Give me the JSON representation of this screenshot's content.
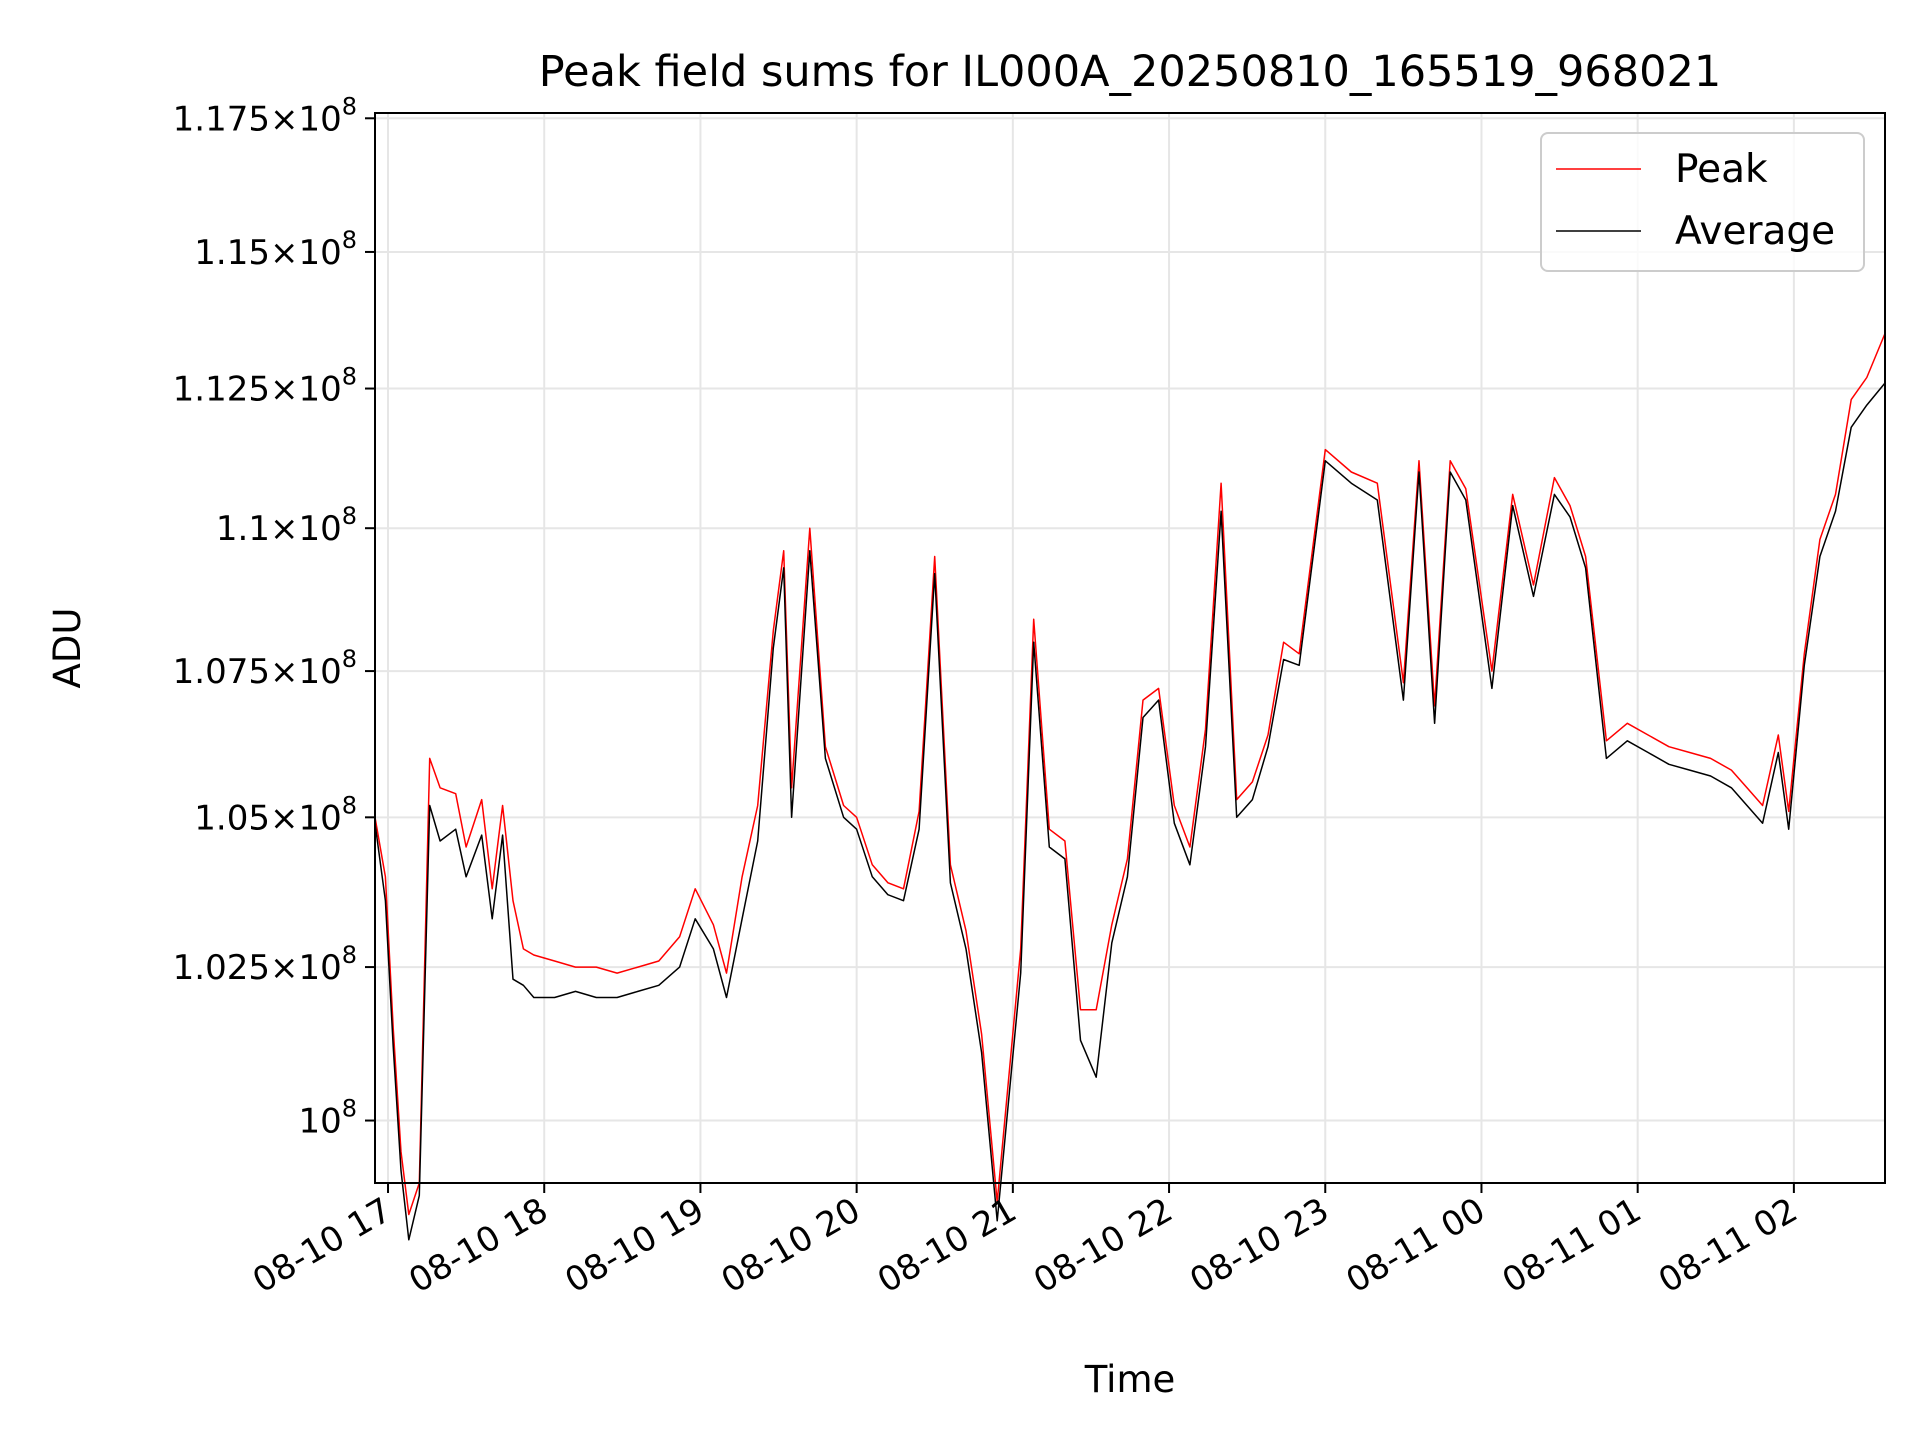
{
  "chart_data": {
    "type": "line",
    "title": "Peak field sums for IL000A_20250810_165519_968021",
    "xlabel": "Time",
    "ylabel": "ADU",
    "xlim": [
      "2025-08-10 16:55",
      "2025-08-11 02:35"
    ],
    "ylim": [
      99000000,
      117600000
    ],
    "y_scale": "log",
    "grid": true,
    "legend_position": "top-right",
    "x_ticks": [
      {
        "value": "2025-08-10 17:00",
        "label": "08-10 17"
      },
      {
        "value": "2025-08-10 18:00",
        "label": "08-10 18"
      },
      {
        "value": "2025-08-10 19:00",
        "label": "08-10 19"
      },
      {
        "value": "2025-08-10 20:00",
        "label": "08-10 20"
      },
      {
        "value": "2025-08-10 21:00",
        "label": "08-10 21"
      },
      {
        "value": "2025-08-10 22:00",
        "label": "08-10 22"
      },
      {
        "value": "2025-08-10 23:00",
        "label": "08-10 23"
      },
      {
        "value": "2025-08-11 00:00",
        "label": "08-11 00"
      },
      {
        "value": "2025-08-11 01:00",
        "label": "08-11 01"
      },
      {
        "value": "2025-08-11 02:00",
        "label": "08-11 02"
      }
    ],
    "y_ticks": [
      {
        "value": 100000000,
        "mantissa": "",
        "exponent": "8"
      },
      {
        "value": 102500000,
        "mantissa": "1.025",
        "exponent": "8"
      },
      {
        "value": 105000000,
        "mantissa": "1.05",
        "exponent": "8"
      },
      {
        "value": 107500000,
        "mantissa": "1.075",
        "exponent": "8"
      },
      {
        "value": 110000000,
        "mantissa": "1.1",
        "exponent": "8"
      },
      {
        "value": 112500000,
        "mantissa": "1.125",
        "exponent": "8"
      },
      {
        "value": 115000000,
        "mantissa": "1.15",
        "exponent": "8"
      },
      {
        "value": 117500000,
        "mantissa": "1.175",
        "exponent": "8"
      }
    ],
    "series": [
      {
        "name": "Peak",
        "color": "#ff0000",
        "x": [
          "2025-08-10 16:55",
          "2025-08-10 16:59",
          "2025-08-10 17:02",
          "2025-08-10 17:05",
          "2025-08-10 17:08",
          "2025-08-10 17:12",
          "2025-08-10 17:16",
          "2025-08-10 17:20",
          "2025-08-10 17:26",
          "2025-08-10 17:30",
          "2025-08-10 17:36",
          "2025-08-10 17:40",
          "2025-08-10 17:44",
          "2025-08-10 17:48",
          "2025-08-10 17:52",
          "2025-08-10 17:56",
          "2025-08-10 18:04",
          "2025-08-10 18:12",
          "2025-08-10 18:20",
          "2025-08-10 18:28",
          "2025-08-10 18:36",
          "2025-08-10 18:44",
          "2025-08-10 18:52",
          "2025-08-10 18:58",
          "2025-08-10 19:05",
          "2025-08-10 19:10",
          "2025-08-10 19:16",
          "2025-08-10 19:22",
          "2025-08-10 19:28",
          "2025-08-10 19:32",
          "2025-08-10 19:35",
          "2025-08-10 19:42",
          "2025-08-10 19:48",
          "2025-08-10 19:55",
          "2025-08-10 20:00",
          "2025-08-10 20:06",
          "2025-08-10 20:12",
          "2025-08-10 20:18",
          "2025-08-10 20:24",
          "2025-08-10 20:30",
          "2025-08-10 20:36",
          "2025-08-10 20:42",
          "2025-08-10 20:48",
          "2025-08-10 20:54",
          "2025-08-10 21:03",
          "2025-08-10 21:08",
          "2025-08-10 21:14",
          "2025-08-10 21:20",
          "2025-08-10 21:26",
          "2025-08-10 21:32",
          "2025-08-10 21:38",
          "2025-08-10 21:44",
          "2025-08-10 21:50",
          "2025-08-10 21:56",
          "2025-08-10 22:02",
          "2025-08-10 22:08",
          "2025-08-10 22:14",
          "2025-08-10 22:20",
          "2025-08-10 22:26",
          "2025-08-10 22:32",
          "2025-08-10 22:38",
          "2025-08-10 22:44",
          "2025-08-10 22:50",
          "2025-08-10 23:00",
          "2025-08-10 23:10",
          "2025-08-10 23:20",
          "2025-08-10 23:30",
          "2025-08-10 23:36",
          "2025-08-10 23:42",
          "2025-08-10 23:48",
          "2025-08-10 23:54",
          "2025-08-11 00:04",
          "2025-08-11 00:12",
          "2025-08-11 00:20",
          "2025-08-11 00:28",
          "2025-08-11 00:34",
          "2025-08-11 00:40",
          "2025-08-11 00:48",
          "2025-08-11 00:56",
          "2025-08-11 01:04",
          "2025-08-11 01:12",
          "2025-08-11 01:20",
          "2025-08-11 01:28",
          "2025-08-11 01:36",
          "2025-08-11 01:42",
          "2025-08-11 01:48",
          "2025-08-11 01:54",
          "2025-08-11 01:58",
          "2025-08-11 02:04",
          "2025-08-11 02:10",
          "2025-08-11 02:16",
          "2025-08-11 02:22",
          "2025-08-11 02:28",
          "2025-08-11 02:35"
        ],
        "values": [
          105000000,
          104000000,
          101500000,
          99500000,
          98500000,
          99000000,
          106000000,
          105500000,
          105400000,
          104500000,
          105300000,
          103800000,
          105200000,
          103600000,
          102800000,
          102700000,
          102600000,
          102500000,
          102500000,
          102400000,
          102500000,
          102600000,
          103000000,
          103800000,
          103200000,
          102400000,
          104000000,
          105200000,
          108200000,
          109600000,
          105500000,
          110000000,
          106200000,
          105200000,
          105000000,
          104200000,
          103900000,
          103800000,
          105100000,
          109500000,
          104200000,
          103100000,
          101400000,
          98700000,
          102800000,
          108400000,
          104800000,
          104600000,
          101800000,
          101800000,
          103200000,
          104300000,
          107000000,
          107200000,
          105200000,
          104500000,
          106500000,
          110800000,
          105300000,
          105600000,
          106400000,
          108000000,
          107800000,
          111400000,
          111000000,
          110800000,
          107300000,
          111200000,
          106900000,
          111200000,
          110700000,
          107500000,
          110600000,
          109000000,
          110900000,
          110400000,
          109500000,
          106300000,
          106600000,
          106400000,
          106200000,
          106100000,
          106000000,
          105800000,
          105500000,
          105200000,
          106400000,
          105100000,
          107800000,
          109800000,
          110600000,
          112300000,
          112700000,
          113500000
        ]
      },
      {
        "name": "Average",
        "color": "#000000",
        "x": [
          "2025-08-10 16:55",
          "2025-08-10 16:59",
          "2025-08-10 17:02",
          "2025-08-10 17:05",
          "2025-08-10 17:08",
          "2025-08-10 17:12",
          "2025-08-10 17:16",
          "2025-08-10 17:20",
          "2025-08-10 17:26",
          "2025-08-10 17:30",
          "2025-08-10 17:36",
          "2025-08-10 17:40",
          "2025-08-10 17:44",
          "2025-08-10 17:48",
          "2025-08-10 17:52",
          "2025-08-10 17:56",
          "2025-08-10 18:04",
          "2025-08-10 18:12",
          "2025-08-10 18:20",
          "2025-08-10 18:28",
          "2025-08-10 18:36",
          "2025-08-10 18:44",
          "2025-08-10 18:52",
          "2025-08-10 18:58",
          "2025-08-10 19:05",
          "2025-08-10 19:10",
          "2025-08-10 19:16",
          "2025-08-10 19:22",
          "2025-08-10 19:28",
          "2025-08-10 19:32",
          "2025-08-10 19:35",
          "2025-08-10 19:42",
          "2025-08-10 19:48",
          "2025-08-10 19:55",
          "2025-08-10 20:00",
          "2025-08-10 20:06",
          "2025-08-10 20:12",
          "2025-08-10 20:18",
          "2025-08-10 20:24",
          "2025-08-10 20:30",
          "2025-08-10 20:36",
          "2025-08-10 20:42",
          "2025-08-10 20:48",
          "2025-08-10 20:54",
          "2025-08-10 21:03",
          "2025-08-10 21:08",
          "2025-08-10 21:14",
          "2025-08-10 21:20",
          "2025-08-10 21:26",
          "2025-08-10 21:32",
          "2025-08-10 21:38",
          "2025-08-10 21:44",
          "2025-08-10 21:50",
          "2025-08-10 21:56",
          "2025-08-10 22:02",
          "2025-08-10 22:08",
          "2025-08-10 22:14",
          "2025-08-10 22:20",
          "2025-08-10 22:26",
          "2025-08-10 22:32",
          "2025-08-10 22:38",
          "2025-08-10 22:44",
          "2025-08-10 22:50",
          "2025-08-10 23:00",
          "2025-08-10 23:10",
          "2025-08-10 23:20",
          "2025-08-10 23:30",
          "2025-08-10 23:36",
          "2025-08-10 23:42",
          "2025-08-10 23:48",
          "2025-08-10 23:54",
          "2025-08-11 00:04",
          "2025-08-11 00:12",
          "2025-08-11 00:20",
          "2025-08-11 00:28",
          "2025-08-11 00:34",
          "2025-08-11 00:40",
          "2025-08-11 00:48",
          "2025-08-11 00:56",
          "2025-08-11 01:04",
          "2025-08-11 01:12",
          "2025-08-11 01:20",
          "2025-08-11 01:28",
          "2025-08-11 01:36",
          "2025-08-11 01:42",
          "2025-08-11 01:48",
          "2025-08-11 01:54",
          "2025-08-11 01:58",
          "2025-08-11 02:04",
          "2025-08-11 02:10",
          "2025-08-11 02:16",
          "2025-08-11 02:22",
          "2025-08-11 02:28",
          "2025-08-11 02:35"
        ],
        "values": [
          104900000,
          103600000,
          101200000,
          99200000,
          98100000,
          98800000,
          105200000,
          104600000,
          104800000,
          104000000,
          104700000,
          103300000,
          104700000,
          102300000,
          102200000,
          102000000,
          102000000,
          102100000,
          102000000,
          102000000,
          102100000,
          102200000,
          102500000,
          103300000,
          102800000,
          102000000,
          103300000,
          104600000,
          107900000,
          109300000,
          105000000,
          109600000,
          106000000,
          105000000,
          104800000,
          104000000,
          103700000,
          103600000,
          104800000,
          109200000,
          103900000,
          102800000,
          101100000,
          98400000,
          102400000,
          108000000,
          104500000,
          104300000,
          101300000,
          100700000,
          102900000,
          104000000,
          106700000,
          107000000,
          104900000,
          104200000,
          106200000,
          110300000,
          105000000,
          105300000,
          106200000,
          107700000,
          107600000,
          111200000,
          110800000,
          110500000,
          107000000,
          111000000,
          106600000,
          111000000,
          110500000,
          107200000,
          110400000,
          108800000,
          110600000,
          110200000,
          109300000,
          106000000,
          106300000,
          106100000,
          105900000,
          105800000,
          105700000,
          105500000,
          105200000,
          104900000,
          106100000,
          104800000,
          107600000,
          109500000,
          110300000,
          111800000,
          112200000,
          112600000
        ]
      }
    ]
  }
}
